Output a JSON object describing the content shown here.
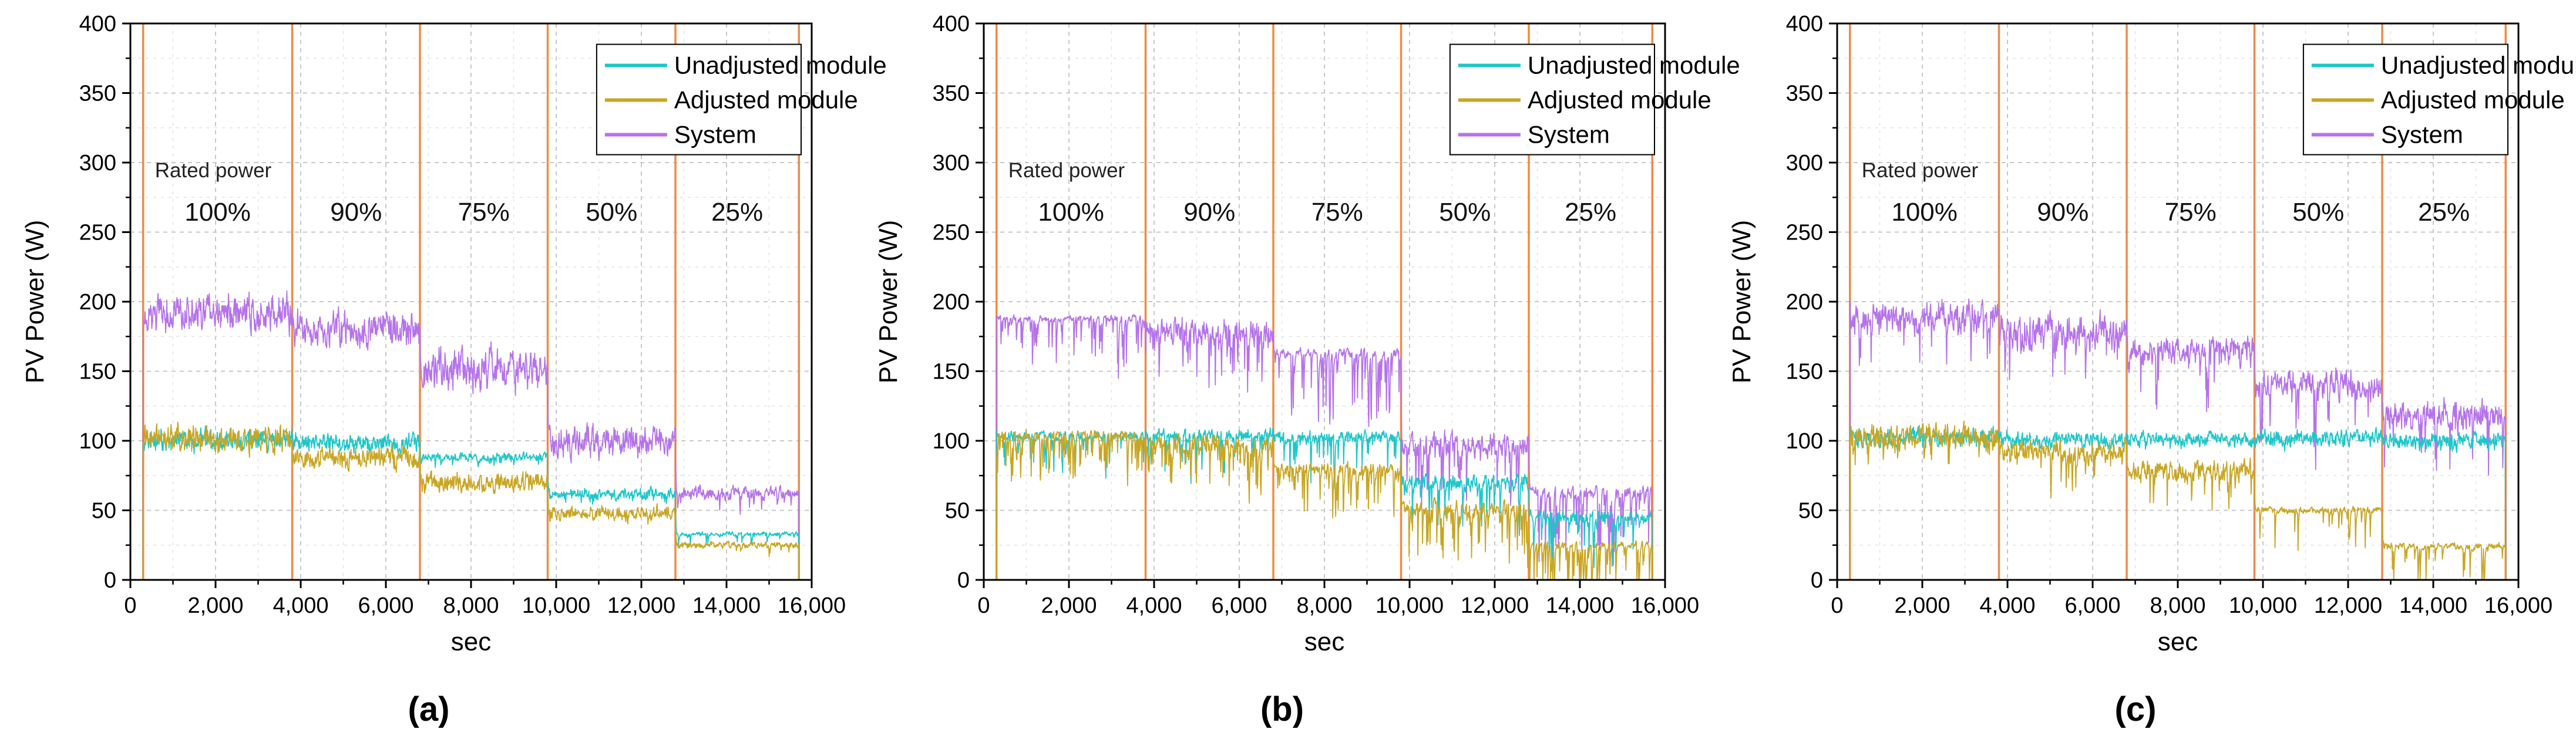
{
  "panel_captions": [
    "(a)",
    "(b)",
    "(c)"
  ],
  "colors": {
    "unadjusted": "#1cc7c9",
    "adjusted": "#c9a623",
    "system": "#b573ea",
    "stage_line": "#f08a45",
    "grid": "#c8c8c8",
    "axis": "#000000"
  },
  "chart_data": [
    {
      "type": "line",
      "panel": "(a)",
      "xlabel": "sec",
      "ylabel": "PV Power (W)",
      "xlim": [
        0,
        16000
      ],
      "ylim": [
        0,
        400
      ],
      "xticks": [
        0,
        2000,
        4000,
        6000,
        8000,
        10000,
        12000,
        14000,
        16000
      ],
      "xtick_labels": [
        "0",
        "2,000",
        "4,000",
        "6,000",
        "8,000",
        "10,000",
        "12,000",
        "14,000",
        "16,000"
      ],
      "yticks": [
        0,
        50,
        100,
        150,
        200,
        250,
        300,
        350,
        400
      ],
      "ytick_labels": [
        "0",
        "50",
        "100",
        "150",
        "200",
        "250",
        "300",
        "350",
        "400"
      ],
      "grid": true,
      "legend": [
        "Unadjusted module",
        "Adjusted module",
        "System"
      ],
      "legend_position": "top-right",
      "annotation": "Rated power",
      "stage_boundaries": [
        300,
        3800,
        6800,
        9800,
        12800,
        15700
      ],
      "stage_labels": [
        "100%",
        "90%",
        "75%",
        "50%",
        "25%"
      ],
      "series": [
        {
          "name": "Unadjusted module",
          "stage_means": [
            100,
            98,
            88,
            62,
            33
          ],
          "stage_noise": [
            10,
            8,
            4,
            5,
            2
          ],
          "spike_rate": 0.05,
          "spike_depth": 10
        },
        {
          "name": "Adjusted module",
          "stage_means": [
            101,
            88,
            70,
            48,
            25
          ],
          "stage_noise": [
            12,
            10,
            9,
            6,
            3
          ],
          "spike_rate": 0.05,
          "spike_depth": 10
        },
        {
          "name": "System",
          "stage_means": [
            192,
            180,
            152,
            100,
            62
          ],
          "stage_noise": [
            17,
            16,
            18,
            14,
            6
          ],
          "spike_rate": 0.05,
          "spike_depth": 15
        }
      ]
    },
    {
      "type": "line",
      "panel": "(b)",
      "xlabel": "sec",
      "ylabel": "PV Power (W)",
      "xlim": [
        0,
        16000
      ],
      "ylim": [
        0,
        400
      ],
      "xticks": [
        0,
        2000,
        4000,
        6000,
        8000,
        10000,
        12000,
        14000,
        16000
      ],
      "xtick_labels": [
        "0",
        "2,000",
        "4,000",
        "6,000",
        "8,000",
        "10,000",
        "12,000",
        "14,000",
        "16,000"
      ],
      "yticks": [
        0,
        50,
        100,
        150,
        200,
        250,
        300,
        350,
        400
      ],
      "ytick_labels": [
        "0",
        "50",
        "100",
        "150",
        "200",
        "250",
        "300",
        "350",
        "400"
      ],
      "grid": true,
      "legend": [
        "Unadjusted module",
        "Adjusted module",
        "System"
      ],
      "legend_position": "top-right",
      "annotation": "Rated power",
      "stage_boundaries": [
        300,
        3800,
        6800,
        9800,
        12800,
        15700
      ],
      "stage_labels": [
        "100%",
        "90%",
        "75%",
        "50%",
        "25%"
      ],
      "series": [
        {
          "name": "Unadjusted module",
          "stage_means": [
            103,
            104,
            103,
            70,
            45
          ],
          "stage_noise": [
            4,
            6,
            5,
            7,
            6
          ],
          "spike_rate": 0.12,
          "spike_depth": 45
        },
        {
          "name": "Adjusted module",
          "stage_means": [
            104,
            97,
            80,
            52,
            25
          ],
          "stage_noise": [
            5,
            9,
            6,
            7,
            3
          ],
          "spike_rate": 0.18,
          "spike_depth": 50
        },
        {
          "name": "System",
          "stage_means": [
            188,
            178,
            163,
            98,
            63
          ],
          "stage_noise": [
            3,
            12,
            4,
            10,
            5
          ],
          "spike_rate": 0.16,
          "spike_depth": 60
        }
      ]
    },
    {
      "type": "line",
      "panel": "(c)",
      "xlabel": "sec",
      "ylabel": "PV Power (W)",
      "xlim": [
        0,
        16000
      ],
      "ylim": [
        0,
        400
      ],
      "xticks": [
        0,
        2000,
        4000,
        6000,
        8000,
        10000,
        12000,
        14000,
        16000
      ],
      "xtick_labels": [
        "0",
        "2,000",
        "4,000",
        "6,000",
        "8,000",
        "10,000",
        "12,000",
        "14,000",
        "16,000"
      ],
      "yticks": [
        0,
        50,
        100,
        150,
        200,
        250,
        300,
        350,
        400
      ],
      "ytick_labels": [
        "0",
        "50",
        "100",
        "150",
        "200",
        "250",
        "300",
        "350",
        "400"
      ],
      "grid": true,
      "legend": [
        "Unadjusted module",
        "Adjusted module",
        "System"
      ],
      "legend_position": "top-right",
      "annotation": "Rated power",
      "stage_boundaries": [
        300,
        3800,
        6800,
        9800,
        12800,
        15700
      ],
      "stage_labels": [
        "100%",
        "90%",
        "75%",
        "50%",
        "25%"
      ],
      "series": [
        {
          "name": "Unadjusted module",
          "stage_means": [
            102,
            101,
            101,
            102,
            100
          ],
          "stage_noise": [
            9,
            6,
            6,
            7,
            7
          ],
          "spike_rate": 0.05,
          "spike_depth": 12
        },
        {
          "name": "Adjusted module",
          "stage_means": [
            103,
            93,
            78,
            50,
            24
          ],
          "stage_noise": [
            11,
            10,
            9,
            3,
            3
          ],
          "spike_rate": 0.08,
          "spike_depth": 40
        },
        {
          "name": "System",
          "stage_means": [
            188,
            178,
            165,
            140,
            118
          ],
          "stage_noise": [
            14,
            15,
            12,
            12,
            13
          ],
          "spike_rate": 0.08,
          "spike_depth": 60
        }
      ]
    }
  ]
}
